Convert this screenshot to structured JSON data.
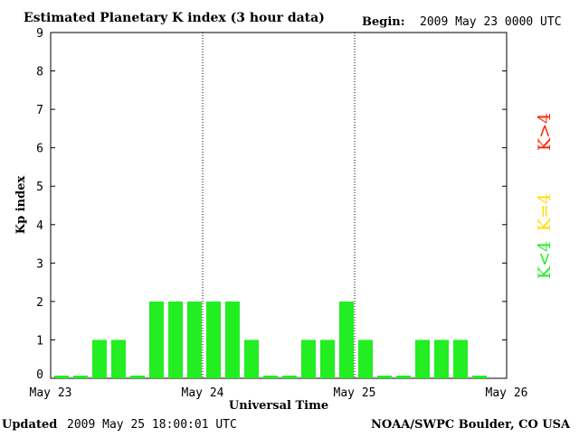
{
  "header": {
    "title": "Estimated Planetary K index (3 hour data)",
    "begin_label": "Begin:",
    "begin_value": "2009 May 23 0000 UTC"
  },
  "footer": {
    "updated_label": "Updated",
    "updated_value": "2009 May 25 18:00:01 UTC",
    "source": "NOAA/SWPC Boulder, CO USA"
  },
  "legend": [
    {
      "text": "K<4",
      "color": "#22ee22"
    },
    {
      "text": "K=4",
      "color": "#ffdd00"
    },
    {
      "text": "K>4",
      "color": "#ff2200"
    }
  ],
  "chart_data": {
    "type": "bar",
    "title": "Estimated Planetary K index (3 hour data)",
    "xlabel": "Universal Time",
    "ylabel": "Kp index",
    "ylim": [
      0,
      9
    ],
    "yticks": [
      0,
      1,
      2,
      3,
      4,
      5,
      6,
      7,
      8,
      9
    ],
    "x_tick_labels": [
      "May 23",
      "May 24",
      "May 25",
      "May 26"
    ],
    "slots_per_day": 8,
    "days": 3,
    "values": [
      0,
      0,
      1,
      1,
      0,
      2,
      2,
      2,
      2,
      2,
      1,
      0,
      0,
      1,
      1,
      2,
      1,
      0,
      0,
      1,
      1,
      1,
      0
    ],
    "bar_color": "#22ee22",
    "day_separators": "dotted"
  }
}
